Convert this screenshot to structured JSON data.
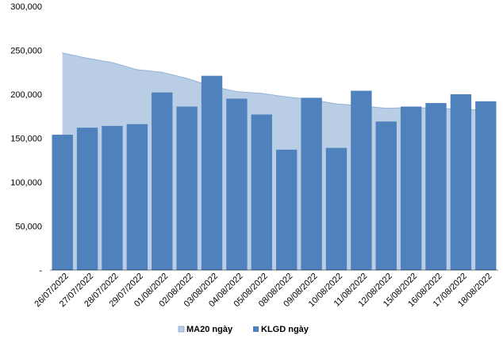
{
  "chart_data": {
    "type": "bar",
    "categories": [
      "26/07/2022",
      "27/07/2022",
      "28/07/2022",
      "29/07/2022",
      "01/08/2022",
      "02/08/2022",
      "03/08/2022",
      "04/08/2022",
      "05/08/2022",
      "08/08/2022",
      "09/08/2022",
      "10/08/2022",
      "11/08/2022",
      "12/08/2022",
      "15/08/2022",
      "16/08/2022",
      "17/08/2022",
      "18/08/2022"
    ],
    "series": [
      {
        "name": "MA20 ngày",
        "kind": "area",
        "color": "#b9cde5",
        "values": [
          247000,
          241000,
          236000,
          228000,
          225000,
          218000,
          209000,
          203000,
          201000,
          197000,
          194000,
          189000,
          187000,
          184000,
          185000,
          184000,
          183000,
          182000
        ]
      },
      {
        "name": "KLGD ngày",
        "kind": "bar",
        "color": "#4f81bd",
        "values": [
          154000,
          162000,
          164000,
          166000,
          202000,
          186000,
          221000,
          195000,
          177000,
          137000,
          196000,
          139000,
          204000,
          169000,
          186000,
          190000,
          200000,
          192000
        ]
      }
    ],
    "ylim": [
      0,
      300000
    ],
    "yticks": [
      0,
      50000,
      100000,
      150000,
      200000,
      250000,
      300000
    ],
    "ytick_labels": [
      "-",
      "50,000",
      "100,000",
      "150,000",
      "200,000",
      "250,000",
      "300,000"
    ],
    "legend_position": "bottom",
    "grid": false
  }
}
